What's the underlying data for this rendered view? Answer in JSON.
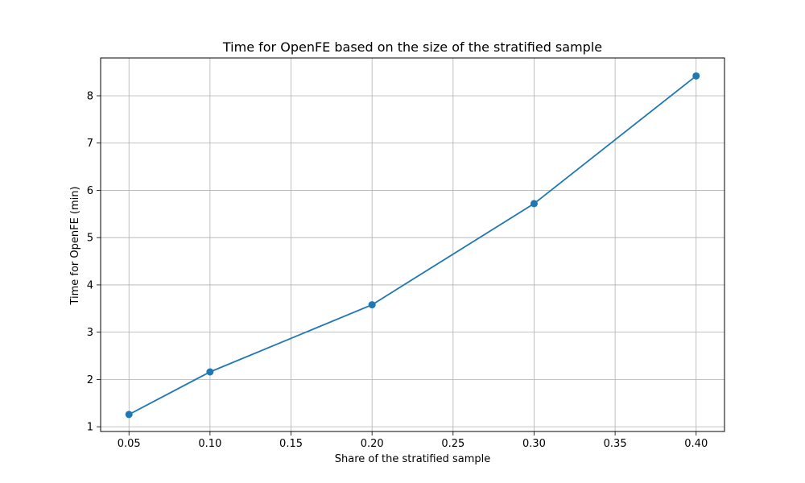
{
  "chart_data": {
    "type": "line",
    "title": "Time for OpenFE based on the size of the stratified sample",
    "xlabel": "Share of the stratified sample",
    "ylabel": "Time for OpenFE (min)",
    "xlim": [
      0.0325,
      0.4175
    ],
    "ylim": [
      0.9,
      8.8
    ],
    "grid": true,
    "x_ticks": [
      0.05,
      0.1,
      0.15,
      0.2,
      0.25,
      0.3,
      0.35,
      0.4
    ],
    "x_tick_labels": [
      "0.05",
      "0.10",
      "0.15",
      "0.20",
      "0.25",
      "0.30",
      "0.35",
      "0.40"
    ],
    "y_ticks": [
      1,
      2,
      3,
      4,
      5,
      6,
      7,
      8
    ],
    "y_tick_labels": [
      "1",
      "2",
      "3",
      "4",
      "5",
      "6",
      "7",
      "8"
    ],
    "series": [
      {
        "color": "#1f77b4",
        "marker": "circle",
        "x": [
          0.05,
          0.1,
          0.2,
          0.3,
          0.4
        ],
        "y": [
          1.26,
          2.16,
          3.58,
          5.72,
          8.42
        ]
      }
    ]
  }
}
